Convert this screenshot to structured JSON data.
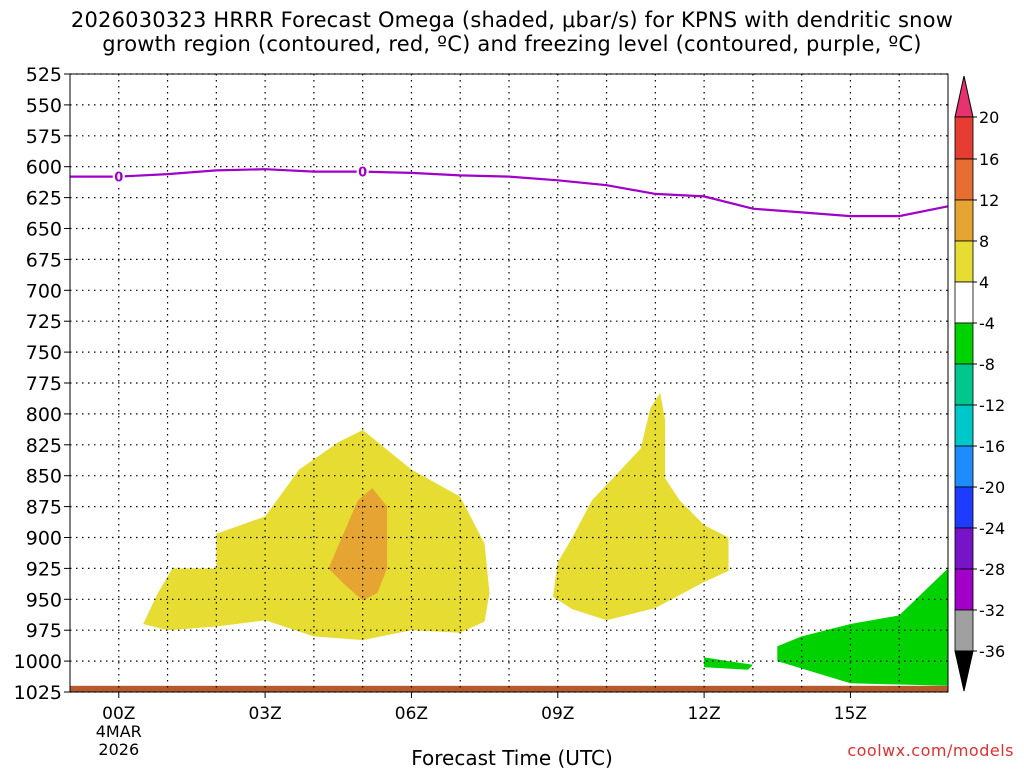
{
  "title": {
    "line1": "2026030323 HRRR Forecast Omega (shaded, μbar/s) for KPNS with dendritic snow",
    "line2": "growth region (contoured, red, ºC) and freezing level (contoured, purple, ºC)"
  },
  "credit": "coolwx.com/models",
  "chart_data": {
    "type": "area",
    "title": "2026030323 HRRR Forecast Omega (shaded, μbar/s) for KPNS with dendritic snow growth region (contoured, red, ºC) and freezing level (contoured, purple, ºC)",
    "xlabel": "Forecast Time (UTC)",
    "ylabel": "",
    "x_unit": "forecast hour",
    "xlim": [
      -1,
      17
    ],
    "ylim": [
      1025,
      525
    ],
    "y_scale": "pressure (inverted)",
    "grid": true,
    "x_ticks": [
      {
        "hour": 0,
        "label": "00Z",
        "sub": [
          "4MAR",
          "2026"
        ]
      },
      {
        "hour": 3,
        "label": "03Z"
      },
      {
        "hour": 6,
        "label": "06Z"
      },
      {
        "hour": 9,
        "label": "09Z"
      },
      {
        "hour": 12,
        "label": "12Z"
      },
      {
        "hour": 15,
        "label": "15Z"
      }
    ],
    "y_ticks": [
      525,
      550,
      575,
      600,
      625,
      650,
      675,
      700,
      725,
      750,
      775,
      800,
      825,
      850,
      875,
      900,
      925,
      950,
      975,
      1000,
      1025
    ],
    "freezing_level": {
      "color": "#a000c8",
      "label": "0",
      "label_hours": [
        0,
        5
      ],
      "points": [
        [
          -1,
          608
        ],
        [
          0,
          608
        ],
        [
          1,
          606
        ],
        [
          2,
          603
        ],
        [
          3,
          602
        ],
        [
          4,
          604
        ],
        [
          5,
          604
        ],
        [
          6,
          605
        ],
        [
          7,
          607
        ],
        [
          8,
          608
        ],
        [
          9,
          611
        ],
        [
          10,
          615
        ],
        [
          11,
          622
        ],
        [
          12,
          624
        ],
        [
          13,
          634
        ],
        [
          14,
          637
        ],
        [
          15,
          640
        ],
        [
          16,
          640
        ],
        [
          17,
          632
        ]
      ]
    },
    "omega_regions": [
      {
        "name": "4 to 8",
        "color": "#e6dc32",
        "points": [
          [
            0.5,
            970
          ],
          [
            0.8,
            945
          ],
          [
            1.1,
            925
          ],
          [
            2,
            925
          ],
          [
            2,
            897
          ],
          [
            2.5,
            890
          ],
          [
            3,
            883
          ],
          [
            3.7,
            845
          ],
          [
            4.5,
            823
          ],
          [
            5,
            813
          ],
          [
            6,
            845
          ],
          [
            7,
            867
          ],
          [
            7.5,
            905
          ],
          [
            7.6,
            945
          ],
          [
            7.5,
            968
          ],
          [
            7,
            977
          ],
          [
            6,
            975
          ],
          [
            5,
            983
          ],
          [
            4,
            980
          ],
          [
            3,
            967
          ],
          [
            2,
            972
          ],
          [
            1,
            975
          ]
        ]
      },
      {
        "name": "4 to 8",
        "color": "#e6dc32",
        "points": [
          [
            8.9,
            948
          ],
          [
            9,
            920
          ],
          [
            9.3,
            900
          ],
          [
            9.7,
            870
          ],
          [
            10.3,
            845
          ],
          [
            10.7,
            828
          ],
          [
            10.9,
            795
          ],
          [
            11.1,
            783
          ],
          [
            11.2,
            805
          ],
          [
            11.2,
            852
          ],
          [
            11.5,
            870
          ],
          [
            12,
            890
          ],
          [
            12.5,
            900
          ],
          [
            12.5,
            927
          ],
          [
            12,
            936
          ],
          [
            11,
            957
          ],
          [
            10,
            967
          ],
          [
            9.3,
            958
          ]
        ]
      },
      {
        "name": "8 to 12",
        "color": "#e6a532",
        "points": [
          [
            4.3,
            925
          ],
          [
            4.9,
            870
          ],
          [
            5.2,
            860
          ],
          [
            5.5,
            875
          ],
          [
            5.5,
            925
          ],
          [
            5.3,
            945
          ],
          [
            5,
            951
          ],
          [
            4.6,
            937
          ]
        ]
      },
      {
        "name": "-4 to -8",
        "color": "#00d200",
        "points": [
          [
            12,
            997
          ],
          [
            12.5,
            1000
          ],
          [
            13,
            1003
          ],
          [
            12.9,
            1007
          ],
          [
            12,
            1005
          ]
        ]
      },
      {
        "name": "-4 to -8",
        "color": "#00d200",
        "points": [
          [
            13.5,
            1000
          ],
          [
            13.5,
            988
          ],
          [
            14,
            980
          ],
          [
            15,
            970
          ],
          [
            16,
            963
          ],
          [
            17,
            925
          ],
          [
            17,
            1020
          ],
          [
            15,
            1018
          ],
          [
            14,
            1006
          ]
        ]
      }
    ],
    "surface_band": {
      "color": "#b45a2d",
      "top": 1020,
      "bottom": 1025
    },
    "colorbar": {
      "labels": [
        "20",
        "16",
        "12",
        "8",
        "4",
        "-4",
        "-8",
        "-12",
        "-16",
        "-20",
        "-24",
        "-28",
        "-32",
        "-36"
      ],
      "colors": [
        "#e6326e",
        "#e63c32",
        "#e66e32",
        "#e6a532",
        "#e6dc32",
        "#ffffff",
        "#00d200",
        "#00c88c",
        "#00c8c8",
        "#1e8cff",
        "#1e3cff",
        "#7814c8",
        "#a000c8",
        "#a0a0a0",
        "#000000"
      ]
    }
  }
}
